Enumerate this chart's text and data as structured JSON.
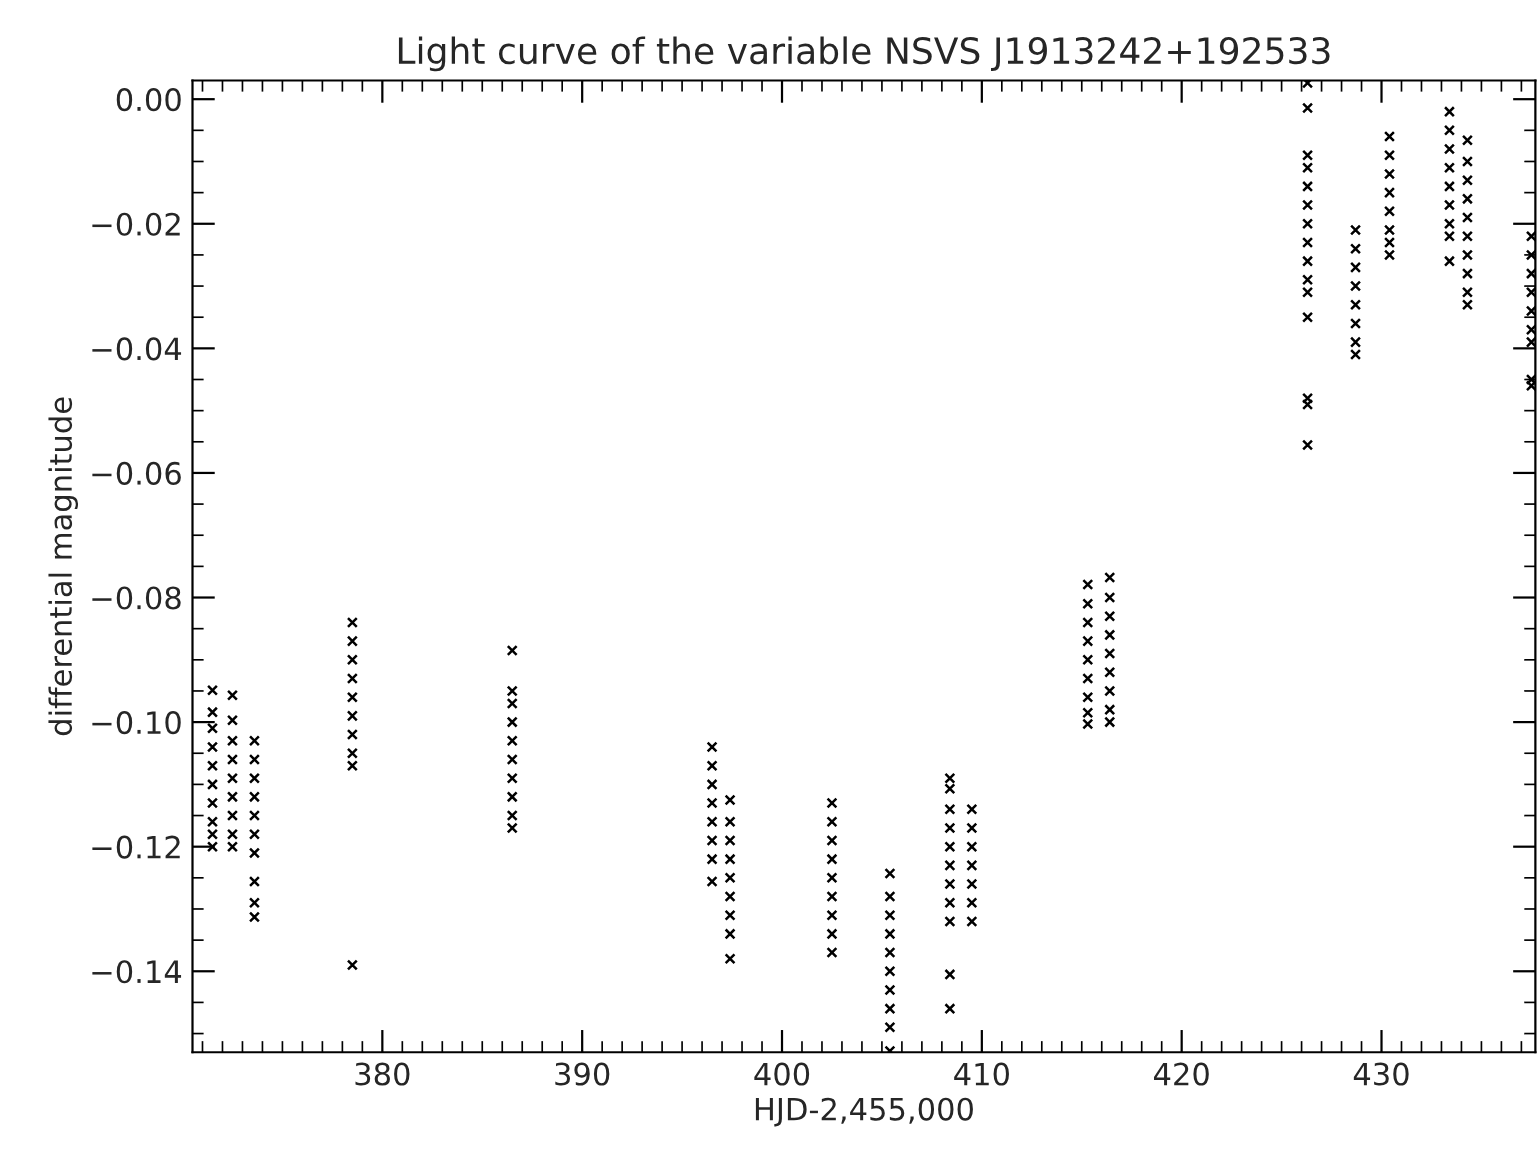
{
  "chart_data": {
    "type": "scatter",
    "title": "Light curve of the variable NSVS J1913242+192533",
    "xlabel": "HJD-2,455,000",
    "ylabel": "differential magnitude",
    "xlim": [
      370.5,
      437.7
    ],
    "ylim": [
      -0.153,
      0.003
    ],
    "xticks": [
      380,
      390,
      400,
      410,
      420,
      430
    ],
    "yticks": [
      {
        "value": 0.0,
        "label": "0.00"
      },
      {
        "value": -0.02,
        "label": "−0.02"
      },
      {
        "value": -0.04,
        "label": "−0.04"
      },
      {
        "value": -0.06,
        "label": "−0.06"
      },
      {
        "value": -0.08,
        "label": "−0.08"
      },
      {
        "value": -0.1,
        "label": "−0.10"
      },
      {
        "value": -0.12,
        "label": "−0.12"
      },
      {
        "value": -0.14,
        "label": "−0.14"
      }
    ],
    "marker": "cross",
    "grid": false,
    "legend": false,
    "series": [
      {
        "color": "#000000",
        "x": [
          371.5,
          371.5,
          371.5,
          371.5,
          371.5,
          371.5,
          371.5,
          371.5,
          371.5,
          371.5,
          372.5,
          372.5,
          372.5,
          372.5,
          372.5,
          372.5,
          372.5,
          372.5,
          372.5,
          373.6,
          373.6,
          373.6,
          373.6,
          373.6,
          373.6,
          373.6,
          373.6,
          373.6,
          373.6,
          378.5,
          378.5,
          378.5,
          378.5,
          378.5,
          378.5,
          378.5,
          378.5,
          378.5,
          378.5,
          386.5,
          386.5,
          386.5,
          386.5,
          386.5,
          386.5,
          386.5,
          386.5,
          386.5,
          386.5,
          396.5,
          396.5,
          396.5,
          396.5,
          396.5,
          396.5,
          396.5,
          396.5,
          397.4,
          397.4,
          397.4,
          397.4,
          397.4,
          397.4,
          397.4,
          397.4,
          397.4,
          402.5,
          402.5,
          402.5,
          402.5,
          402.5,
          402.5,
          402.5,
          402.5,
          402.5,
          405.4,
          405.4,
          405.4,
          405.4,
          405.4,
          405.4,
          405.4,
          405.4,
          405.4,
          405.4,
          408.4,
          408.4,
          408.4,
          408.4,
          408.4,
          408.4,
          408.4,
          408.4,
          408.4,
          408.4,
          408.4,
          409.5,
          409.5,
          409.5,
          409.5,
          409.5,
          409.5,
          409.5,
          415.3,
          415.3,
          415.3,
          415.3,
          415.3,
          415.3,
          415.3,
          415.3,
          415.3,
          416.4,
          416.4,
          416.4,
          416.4,
          416.4,
          416.4,
          416.4,
          416.4,
          416.4,
          426.3,
          426.3,
          426.3,
          426.3,
          426.3,
          426.3,
          426.3,
          426.3,
          426.3,
          426.3,
          426.3,
          426.3,
          426.3,
          426.3,
          426.3,
          428.7,
          428.7,
          428.7,
          428.7,
          428.7,
          428.7,
          428.7,
          428.7,
          430.4,
          430.4,
          430.4,
          430.4,
          430.4,
          430.4,
          430.4,
          430.4,
          433.4,
          433.4,
          433.4,
          433.4,
          433.4,
          433.4,
          433.4,
          433.4,
          433.4,
          434.3,
          434.3,
          434.3,
          434.3,
          434.3,
          434.3,
          434.3,
          434.3,
          434.3,
          434.3,
          437.5,
          437.5,
          437.5,
          437.5,
          437.5,
          437.5,
          437.5,
          437.5,
          437.5
        ],
        "values": [
          -0.0949,
          -0.0984,
          -0.101,
          -0.104,
          -0.107,
          -0.11,
          -0.113,
          -0.116,
          -0.118,
          -0.12,
          -0.0957,
          -0.0997,
          -0.103,
          -0.106,
          -0.109,
          -0.112,
          -0.115,
          -0.118,
          -0.12,
          -0.103,
          -0.106,
          -0.109,
          -0.112,
          -0.115,
          -0.118,
          -0.121,
          -0.1256,
          -0.129,
          -0.1313,
          -0.084,
          -0.087,
          -0.09,
          -0.093,
          -0.096,
          -0.099,
          -0.102,
          -0.105,
          -0.107,
          -0.139,
          -0.0885,
          -0.095,
          -0.097,
          -0.1,
          -0.103,
          -0.106,
          -0.109,
          -0.112,
          -0.115,
          -0.117,
          -0.104,
          -0.107,
          -0.11,
          -0.113,
          -0.116,
          -0.119,
          -0.122,
          -0.1256,
          -0.1125,
          -0.116,
          -0.119,
          -0.122,
          -0.125,
          -0.128,
          -0.131,
          -0.134,
          -0.138,
          -0.113,
          -0.116,
          -0.119,
          -0.122,
          -0.125,
          -0.128,
          -0.131,
          -0.134,
          -0.137,
          -0.1243,
          -0.128,
          -0.131,
          -0.134,
          -0.137,
          -0.14,
          -0.143,
          -0.146,
          -0.149,
          -0.1528,
          -0.109,
          -0.1107,
          -0.114,
          -0.117,
          -0.12,
          -0.123,
          -0.126,
          -0.129,
          -0.132,
          -0.1405,
          -0.146,
          -0.114,
          -0.117,
          -0.12,
          -0.123,
          -0.126,
          -0.129,
          -0.132,
          -0.0779,
          -0.081,
          -0.084,
          -0.087,
          -0.09,
          -0.093,
          -0.096,
          -0.0985,
          -0.1003,
          -0.0768,
          -0.08,
          -0.083,
          -0.086,
          -0.089,
          -0.092,
          -0.095,
          -0.098,
          -0.1,
          0.0026,
          -0.0014,
          -0.009,
          -0.011,
          -0.014,
          -0.017,
          -0.02,
          -0.023,
          -0.026,
          -0.029,
          -0.031,
          -0.035,
          -0.048,
          -0.049,
          -0.0555,
          -0.021,
          -0.024,
          -0.027,
          -0.03,
          -0.033,
          -0.036,
          -0.039,
          -0.041,
          -0.006,
          -0.009,
          -0.012,
          -0.015,
          -0.018,
          -0.021,
          -0.023,
          -0.025,
          -0.002,
          -0.005,
          -0.008,
          -0.011,
          -0.014,
          -0.017,
          -0.02,
          -0.022,
          -0.026,
          -0.0066,
          -0.01,
          -0.013,
          -0.016,
          -0.019,
          -0.022,
          -0.025,
          -0.028,
          -0.031,
          -0.033,
          -0.022,
          -0.025,
          -0.028,
          -0.031,
          -0.034,
          -0.037,
          -0.039,
          -0.045,
          -0.046
        ]
      }
    ]
  }
}
